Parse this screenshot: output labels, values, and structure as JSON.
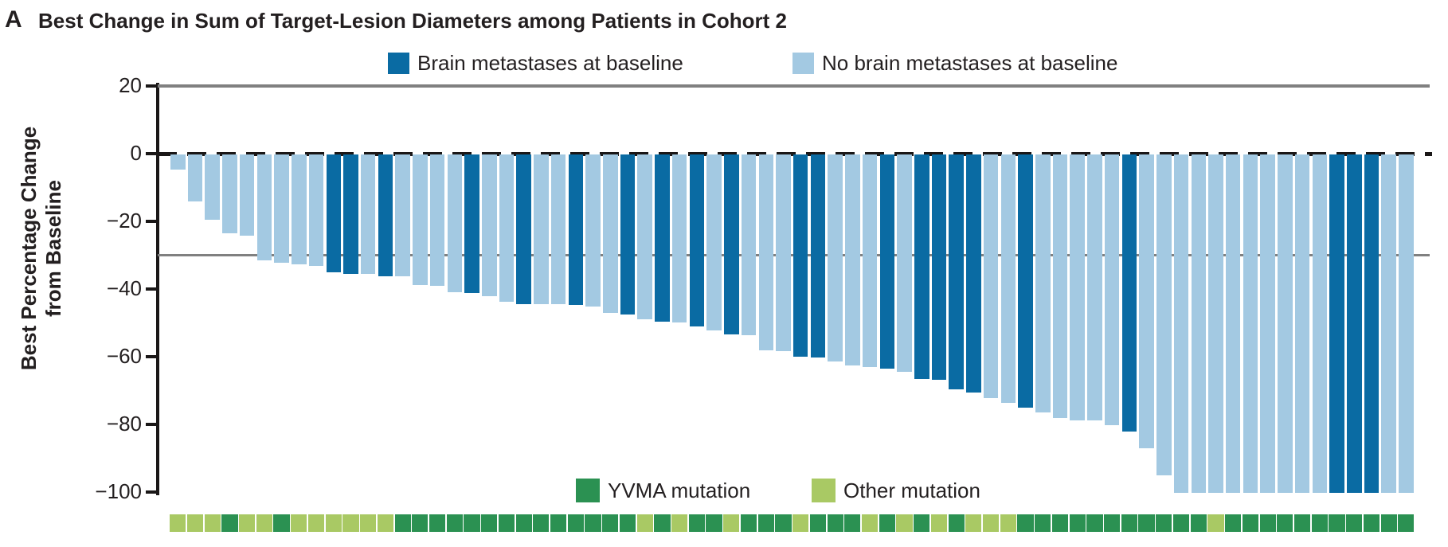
{
  "figure": {
    "panel_label": "A",
    "title": "Best Change in Sum of Target-Lesion Diameters among Patients in Cohort 2"
  },
  "legend_baseline": {
    "items": [
      {
        "label": "Brain metastases at baseline",
        "color": "#0a6ba3"
      },
      {
        "label": "No brain metastases at baseline",
        "color": "#a3c9e2"
      }
    ]
  },
  "legend_mutation": {
    "items": [
      {
        "label": "YVMA mutation",
        "color": "#2b9152"
      },
      {
        "label": "Other mutation",
        "color": "#a9c964"
      }
    ]
  },
  "y_axis": {
    "title_line1": "Best Percentage Change",
    "title_line2": "from Baseline",
    "tick_labels": [
      "20",
      "0",
      "−20",
      "−40",
      "−60",
      "−80",
      "−100"
    ],
    "tick_values": [
      20,
      0,
      -20,
      -40,
      -60,
      -80,
      -100
    ]
  },
  "chart_data": {
    "type": "bar",
    "subtype": "waterfall",
    "title": "Best Change in Sum of Target-Lesion Diameters among Patients in Cohort 2",
    "ylabel": "Best Percentage Change from Baseline",
    "ylim": [
      -100,
      20
    ],
    "reference_lines": {
      "dashed_black": 0,
      "solid_gray": -30,
      "top_frame_gray": 20
    },
    "legend_position": "top-center and bottom-center",
    "grid": false,
    "n_patients": 72,
    "values": [
      -4.5,
      -14,
      -19.5,
      -23.5,
      -24,
      -31.5,
      -32,
      -32.5,
      -33,
      -35,
      -35.5,
      -35.5,
      -36,
      -36.2,
      -38.6,
      -39,
      -40.7,
      -41,
      -42,
      -43.7,
      -44.3,
      -44.3,
      -44.3,
      -44.5,
      -45,
      -47,
      -47.3,
      -48.8,
      -49.6,
      -49.8,
      -51,
      -52,
      -53.3,
      -53.6,
      -58,
      -58.2,
      -59.8,
      -60,
      -61.2,
      -62.5,
      -63,
      -63.3,
      -64.4,
      -66.4,
      -66.8,
      -69.5,
      -70.5,
      -72,
      -73.6,
      -75,
      -76.4,
      -78,
      -78.7,
      -78.7,
      -80,
      -82,
      -87,
      -95,
      -100,
      -100,
      -100,
      -100,
      -100,
      -100,
      -100,
      -100,
      -100,
      -100,
      -100,
      -100,
      -100,
      -100
    ],
    "brain_mets_at_baseline": [
      false,
      false,
      false,
      false,
      false,
      false,
      false,
      false,
      false,
      true,
      true,
      false,
      true,
      false,
      false,
      false,
      false,
      true,
      false,
      false,
      true,
      false,
      false,
      true,
      false,
      false,
      true,
      false,
      true,
      false,
      true,
      false,
      true,
      false,
      false,
      false,
      true,
      true,
      false,
      false,
      false,
      true,
      false,
      true,
      true,
      true,
      true,
      false,
      false,
      true,
      false,
      false,
      false,
      false,
      false,
      true,
      false,
      false,
      false,
      false,
      false,
      false,
      false,
      false,
      false,
      false,
      false,
      true,
      true,
      true,
      false,
      false
    ],
    "mutation": [
      "Other",
      "Other",
      "Other",
      "YVMA",
      "Other",
      "Other",
      "YVMA",
      "Other",
      "Other",
      "Other",
      "Other",
      "Other",
      "Other",
      "YVMA",
      "YVMA",
      "YVMA",
      "YVMA",
      "YVMA",
      "YVMA",
      "YVMA",
      "YVMA",
      "YVMA",
      "YVMA",
      "YVMA",
      "YVMA",
      "YVMA",
      "YVMA",
      "Other",
      "YVMA",
      "Other",
      "YVMA",
      "YVMA",
      "Other",
      "YVMA",
      "YVMA",
      "YVMA",
      "Other",
      "YVMA",
      "YVMA",
      "YVMA",
      "Other",
      "YVMA",
      "Other",
      "YVMA",
      "Other",
      "YVMA",
      "Other",
      "Other",
      "Other",
      "YVMA",
      "YVMA",
      "YVMA",
      "YVMA",
      "YVMA",
      "YVMA",
      "YVMA",
      "YVMA",
      "YVMA",
      "YVMA",
      "YVMA",
      "Other",
      "YVMA",
      "YVMA",
      "YVMA",
      "YVMA",
      "YVMA",
      "YVMA",
      "YVMA",
      "YVMA",
      "YVMA",
      "YVMA",
      "YVMA"
    ],
    "series_colors": {
      "brain_mets": "#0a6ba3",
      "no_brain_mets": "#a3c9e2",
      "yvma_mutation": "#2b9152",
      "other_mutation": "#a9c964"
    }
  }
}
